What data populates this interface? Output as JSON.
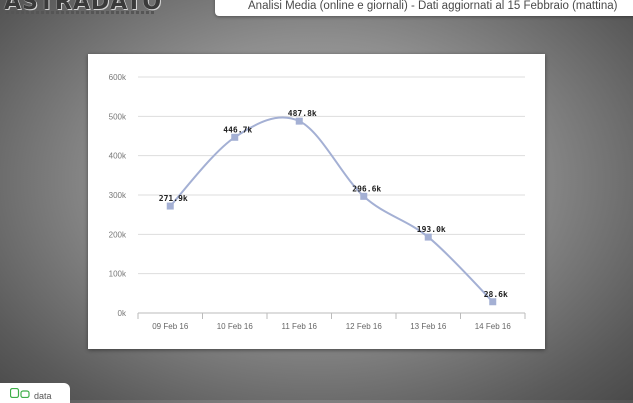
{
  "header": {
    "logo_text": "ASTRADATO",
    "banner_text": "Analisi Media (online e giornali) - Dati aggiornati al 15 Febbraio (mattina)"
  },
  "footer": {
    "tab_label": "data"
  },
  "colors": {
    "line": "#a4b0d4",
    "marker": "#a4b0d4",
    "grid": "#dddddd"
  },
  "chart_data": {
    "type": "line",
    "title": "",
    "xlabel": "",
    "ylabel": "",
    "categories": [
      "09 Feb 16",
      "10 Feb 16",
      "11 Feb 16",
      "12 Feb 16",
      "13 Feb 16",
      "14 Feb 16"
    ],
    "values": [
      271900,
      446700,
      487800,
      296600,
      193000,
      28600
    ],
    "data_labels": [
      "271.9k",
      "446.7k",
      "487.8k",
      "296.6k",
      "193.0k",
      "28.6k"
    ],
    "y_ticks": [
      0,
      100000,
      200000,
      300000,
      400000,
      500000,
      600000
    ],
    "y_tick_labels": [
      "0k",
      "100k",
      "200k",
      "300k",
      "400k",
      "500k",
      "600k"
    ],
    "ylim": [
      0,
      600000
    ],
    "grid": true,
    "smooth": true
  }
}
